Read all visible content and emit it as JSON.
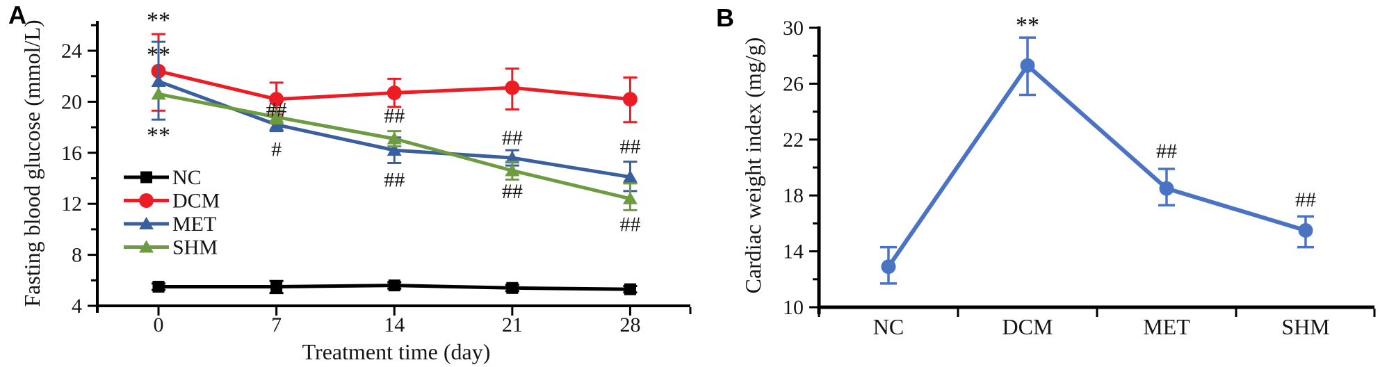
{
  "figure": {
    "panel_a_letter": "A",
    "panel_b_letter": "B",
    "background": "#ffffff"
  },
  "chart_data": [
    {
      "type": "line",
      "panel": "A",
      "title": "",
      "xlabel": "Treatment time (day)",
      "ylabel": "Fasting blood glucose (mmol/L)",
      "x": [
        0,
        7,
        14,
        21,
        28
      ],
      "xticks": [
        0,
        7,
        14,
        21,
        28
      ],
      "ylim": [
        4,
        26.4
      ],
      "yticks_major": [
        4,
        8,
        12,
        16,
        20,
        24
      ],
      "yticks_minor": [
        6,
        10,
        14,
        18,
        22,
        26
      ],
      "grid": false,
      "legend_position": "inside-left",
      "series": [
        {
          "name": "NC",
          "color": "#000000",
          "marker": "square",
          "values": [
            5.5,
            5.5,
            5.6,
            5.4,
            5.3
          ],
          "err_up": [
            0.25,
            0.45,
            0.25,
            0.25,
            0.25
          ],
          "err_down": [
            0.25,
            0.5,
            0.25,
            0.25,
            0.25
          ]
        },
        {
          "name": "DCM",
          "color": "#ec1c24",
          "marker": "circle",
          "values": [
            22.4,
            20.2,
            20.7,
            21.1,
            20.2
          ],
          "err_up": [
            2.9,
            1.3,
            1.1,
            1.5,
            1.7
          ],
          "err_down": [
            3.1,
            1.2,
            1.1,
            1.7,
            1.8
          ]
        },
        {
          "name": "MET",
          "color": "#3a5f9f",
          "marker": "triangle",
          "values": [
            21.6,
            18.2,
            16.2,
            15.6,
            14.1
          ],
          "err_up": [
            3.1,
            0.6,
            1.0,
            0.6,
            1.2
          ],
          "err_down": [
            3.0,
            0.5,
            1.0,
            0.6,
            1.1
          ]
        },
        {
          "name": "SHM",
          "color": "#6d9b40",
          "marker": "triangle",
          "values": [
            20.6,
            18.8,
            17.1,
            14.6,
            12.4
          ],
          "err_up": [
            0,
            0.5,
            0.6,
            0.7,
            1.2
          ],
          "err_down": [
            0,
            0.5,
            0.6,
            0.7,
            0.9
          ]
        }
      ],
      "annotations": [
        {
          "x": 0,
          "y": 26.5,
          "text": "**"
        },
        {
          "x": 0,
          "y": 23.8,
          "text": "**"
        },
        {
          "x": 0,
          "y": 17.5,
          "text": "**"
        },
        {
          "x": 7,
          "y": 19.4,
          "text": "##"
        },
        {
          "x": 7,
          "y": 16.3,
          "text": "#"
        },
        {
          "x": 14,
          "y": 18.9,
          "text": "##"
        },
        {
          "x": 14,
          "y": 13.9,
          "text": "##"
        },
        {
          "x": 21,
          "y": 17.2,
          "text": "##"
        },
        {
          "x": 21,
          "y": 13.0,
          "text": "##"
        },
        {
          "x": 28,
          "y": 16.5,
          "text": "##"
        },
        {
          "x": 28,
          "y": 10.4,
          "text": "##"
        }
      ]
    },
    {
      "type": "line",
      "panel": "B",
      "title": "",
      "xlabel": "",
      "ylabel": "Cardiac weight index (mg/g)",
      "categories": [
        "NC",
        "DCM",
        "MET",
        "SHM"
      ],
      "ylim": [
        10,
        30
      ],
      "yticks_major": [
        10,
        14,
        18,
        22,
        26,
        30
      ],
      "yticks_minor": [
        12,
        16,
        20,
        24,
        28
      ],
      "grid": false,
      "series": [
        {
          "name": "Cardiac weight index",
          "color": "#4a73c4",
          "marker": "circle",
          "values": [
            12.9,
            27.3,
            18.5,
            15.5
          ],
          "err_up": [
            1.4,
            2.0,
            1.4,
            1.0
          ],
          "err_down": [
            1.2,
            2.1,
            1.2,
            1.2
          ]
        }
      ],
      "annotations": [
        {
          "category": "DCM",
          "y": 30.3,
          "text": "**"
        },
        {
          "category": "MET",
          "y": 21.2,
          "text": "##"
        },
        {
          "category": "SHM",
          "y": 17.7,
          "text": "##"
        }
      ]
    }
  ]
}
